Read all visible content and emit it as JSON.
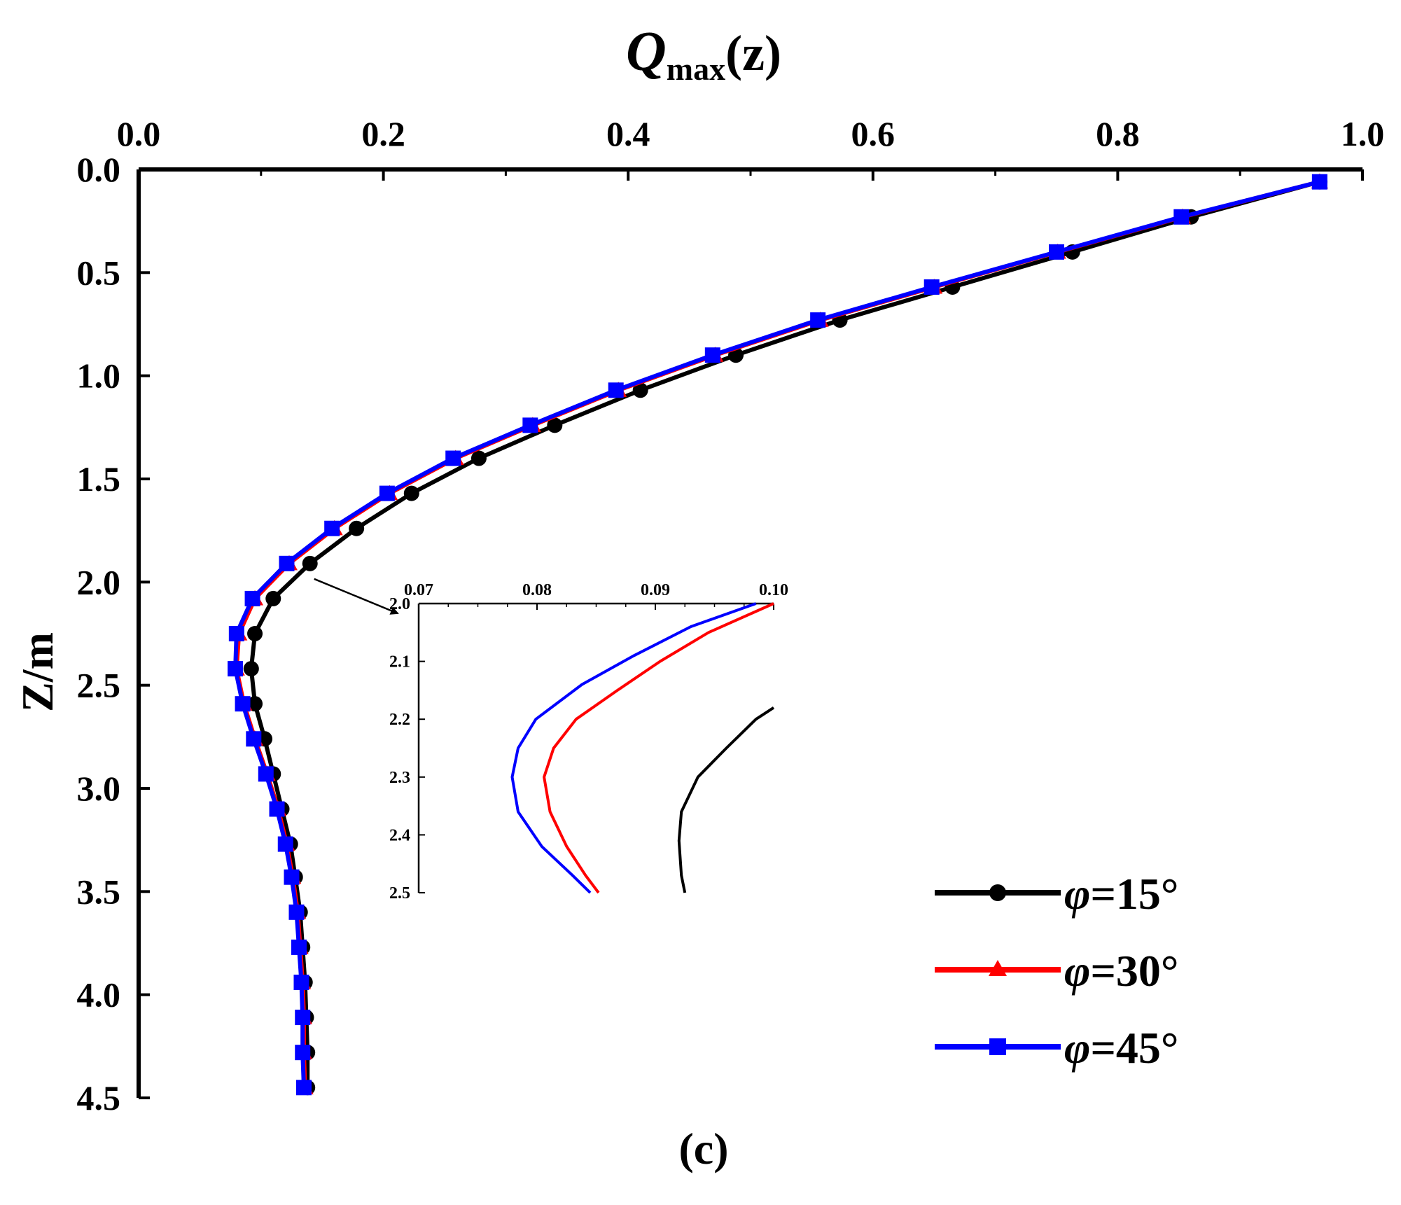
{
  "chart_data": {
    "type": "line",
    "panel_label": "(c)",
    "title": "",
    "xlabel": {
      "main": "Q",
      "sub": "max",
      "suffix": "(z)"
    },
    "ylabel": "Z/m",
    "x_axis_position": "top",
    "y_axis_inverted": true,
    "xlim": [
      0.0,
      1.0
    ],
    "ylim": [
      0.0,
      4.5
    ],
    "xticks": [
      "0.0",
      "0.2",
      "0.4",
      "0.6",
      "0.8",
      "1.0"
    ],
    "yticks": [
      "0.0",
      "0.5",
      "1.0",
      "1.5",
      "2.0",
      "2.5",
      "3.0",
      "3.5",
      "4.0",
      "4.5"
    ],
    "grid": false,
    "legend_position": "bottom-right",
    "series": [
      {
        "name": "φ=15°",
        "legend_prefix": "φ",
        "legend_suffix": "=15°",
        "color": "#000000",
        "marker": "circle",
        "z": [
          0.06,
          0.23,
          0.4,
          0.57,
          0.73,
          0.9,
          1.07,
          1.24,
          1.4,
          1.57,
          1.74,
          1.91,
          2.08,
          2.25,
          2.42,
          2.59,
          2.76,
          2.93,
          3.1,
          3.27,
          3.43,
          3.6,
          3.77,
          3.94,
          4.11,
          4.28,
          4.45
        ],
        "q": [
          0.965,
          0.86,
          0.763,
          0.665,
          0.573,
          0.488,
          0.41,
          0.34,
          0.278,
          0.223,
          0.178,
          0.14,
          0.11,
          0.095,
          0.092,
          0.095,
          0.103,
          0.11,
          0.117,
          0.124,
          0.128,
          0.132,
          0.134,
          0.136,
          0.137,
          0.138,
          0.138
        ]
      },
      {
        "name": "φ=30°",
        "legend_prefix": "φ",
        "legend_suffix": "=30°",
        "color": "#ff0000",
        "marker": "triangle",
        "z": [
          0.06,
          0.23,
          0.4,
          0.57,
          0.73,
          0.9,
          1.07,
          1.24,
          1.4,
          1.57,
          1.74,
          1.91,
          2.08,
          2.25,
          2.42,
          2.59,
          2.76,
          2.93,
          3.1,
          3.27,
          3.43,
          3.6,
          3.77,
          3.94,
          4.11,
          4.28,
          4.45
        ],
        "q": [
          0.965,
          0.853,
          0.751,
          0.65,
          0.557,
          0.471,
          0.392,
          0.322,
          0.259,
          0.205,
          0.16,
          0.123,
          0.095,
          0.082,
          0.08,
          0.086,
          0.095,
          0.105,
          0.114,
          0.121,
          0.126,
          0.13,
          0.132,
          0.134,
          0.135,
          0.135,
          0.136
        ]
      },
      {
        "name": "φ=45°",
        "legend_prefix": "φ",
        "legend_suffix": "=45°",
        "color": "#0000ff",
        "marker": "square",
        "z": [
          0.06,
          0.23,
          0.4,
          0.57,
          0.73,
          0.9,
          1.07,
          1.24,
          1.4,
          1.57,
          1.74,
          1.91,
          2.08,
          2.25,
          2.42,
          2.59,
          2.76,
          2.93,
          3.1,
          3.27,
          3.43,
          3.6,
          3.77,
          3.94,
          4.11,
          4.28,
          4.45
        ],
        "q": [
          0.965,
          0.852,
          0.75,
          0.648,
          0.555,
          0.469,
          0.39,
          0.32,
          0.257,
          0.203,
          0.158,
          0.121,
          0.093,
          0.08,
          0.079,
          0.085,
          0.094,
          0.104,
          0.113,
          0.12,
          0.125,
          0.129,
          0.131,
          0.133,
          0.134,
          0.134,
          0.135
        ]
      }
    ],
    "inset": {
      "xlim": [
        0.07,
        0.1
      ],
      "ylim": [
        2.0,
        2.5
      ],
      "xticks": [
        "0.07",
        "0.08",
        "0.09",
        "0.10"
      ],
      "yticks": [
        "2.0",
        "2.1",
        "2.2",
        "2.3",
        "2.4",
        "2.5"
      ],
      "callout_arrow_from": {
        "q": 0.14,
        "z": 1.91
      },
      "series": [
        {
          "name": "φ=15° (zoom)",
          "color": "#000000",
          "z": [
            2.18,
            2.2,
            2.25,
            2.3,
            2.36,
            2.41,
            2.47,
            2.5
          ],
          "q": [
            0.1,
            0.0985,
            0.096,
            0.0936,
            0.0922,
            0.092,
            0.0922,
            0.0925
          ]
        },
        {
          "name": "φ=30° (zoom)",
          "color": "#ff0000",
          "z": [
            2.0,
            2.05,
            2.1,
            2.15,
            2.2,
            2.25,
            2.3,
            2.36,
            2.42,
            2.47,
            2.5
          ],
          "q": [
            0.1,
            0.0945,
            0.0904,
            0.0868,
            0.0833,
            0.0814,
            0.0806,
            0.0811,
            0.0825,
            0.0841,
            0.0852
          ]
        },
        {
          "name": "φ=45° (zoom)",
          "color": "#0000ff",
          "z": [
            2.0,
            2.04,
            2.09,
            2.14,
            2.2,
            2.25,
            2.3,
            2.36,
            2.42,
            2.47,
            2.5
          ],
          "q": [
            0.0985,
            0.093,
            0.0882,
            0.0838,
            0.0799,
            0.0784,
            0.0779,
            0.0784,
            0.0804,
            0.083,
            0.0845
          ]
        }
      ]
    }
  }
}
